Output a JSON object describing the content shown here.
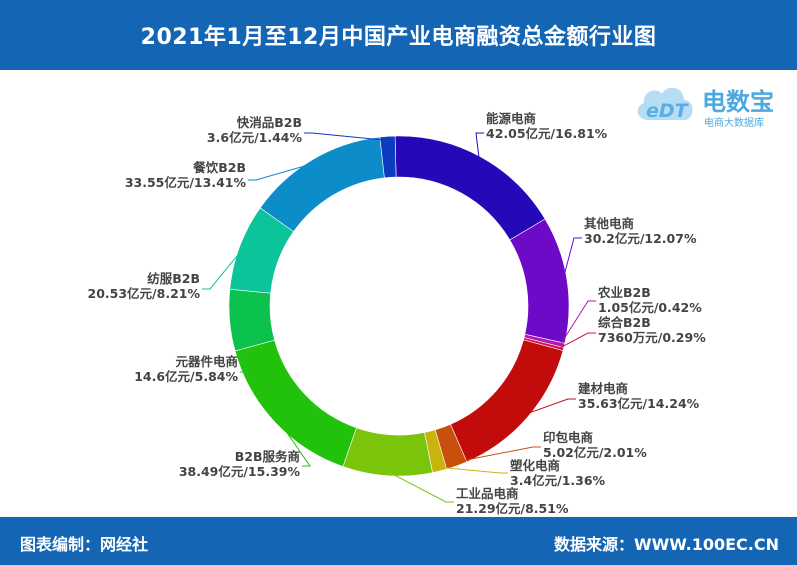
{
  "header": {
    "title": "2021年1月至12月中国产业电商融资总金额行业图"
  },
  "footer": {
    "editor": "图表编制：网经社",
    "source": "数据来源：WWW.100EC.CN"
  },
  "logo": {
    "name": "电数宝",
    "mark": "eDT",
    "subtitle": "电商大数据库",
    "colors": {
      "cloud": "#9fd2f2",
      "text": "#4ba8e0"
    }
  },
  "chart_data": {
    "type": "donut",
    "title": "2021年1月至12月中国产业电商融资总金额行业图",
    "unit": "亿元",
    "slices": [
      {
        "name": "能源电商",
        "value_label": "42.05亿元",
        "value": 42.05,
        "percent": 16.81,
        "color": "#2309b8"
      },
      {
        "name": "其他电商",
        "value_label": "30.2亿元",
        "value": 30.2,
        "percent": 12.07,
        "color": "#6d0ac8"
      },
      {
        "name": "农业B2B",
        "value_label": "1.05亿元",
        "value": 1.05,
        "percent": 0.42,
        "color": "#b015b5"
      },
      {
        "name": "综合B2B",
        "value_label": "7360万元",
        "value": 0.736,
        "percent": 0.29,
        "color": "#d4154a"
      },
      {
        "name": "建材电商",
        "value_label": "35.63亿元",
        "value": 35.63,
        "percent": 14.24,
        "color": "#c20c0c"
      },
      {
        "name": "印包电商",
        "value_label": "5.02亿元",
        "value": 5.02,
        "percent": 2.01,
        "color": "#c8500c"
      },
      {
        "name": "塑化电商",
        "value_label": "3.4亿元",
        "value": 3.4,
        "percent": 1.36,
        "color": "#c8b40c"
      },
      {
        "name": "工业品电商",
        "value_label": "21.29亿元",
        "value": 21.29,
        "percent": 8.51,
        "color": "#7ac40c"
      },
      {
        "name": "B2B服务商",
        "value_label": "38.49亿元",
        "value": 38.49,
        "percent": 15.39,
        "color": "#22c10c"
      },
      {
        "name": "元器件电商",
        "value_label": "14.6亿元",
        "value": 14.6,
        "percent": 5.84,
        "color": "#0cc24e"
      },
      {
        "name": "纺服B2B",
        "value_label": "20.53亿元",
        "value": 20.53,
        "percent": 8.21,
        "color": "#0cc49a"
      },
      {
        "name": "餐饮B2B",
        "value_label": "33.55亿元",
        "value": 33.55,
        "percent": 13.41,
        "color": "#0c8cc8"
      },
      {
        "name": "快消品B2B",
        "value_label": "3.6亿元",
        "value": 3.6,
        "percent": 1.44,
        "color": "#0c3cc0"
      }
    ]
  }
}
